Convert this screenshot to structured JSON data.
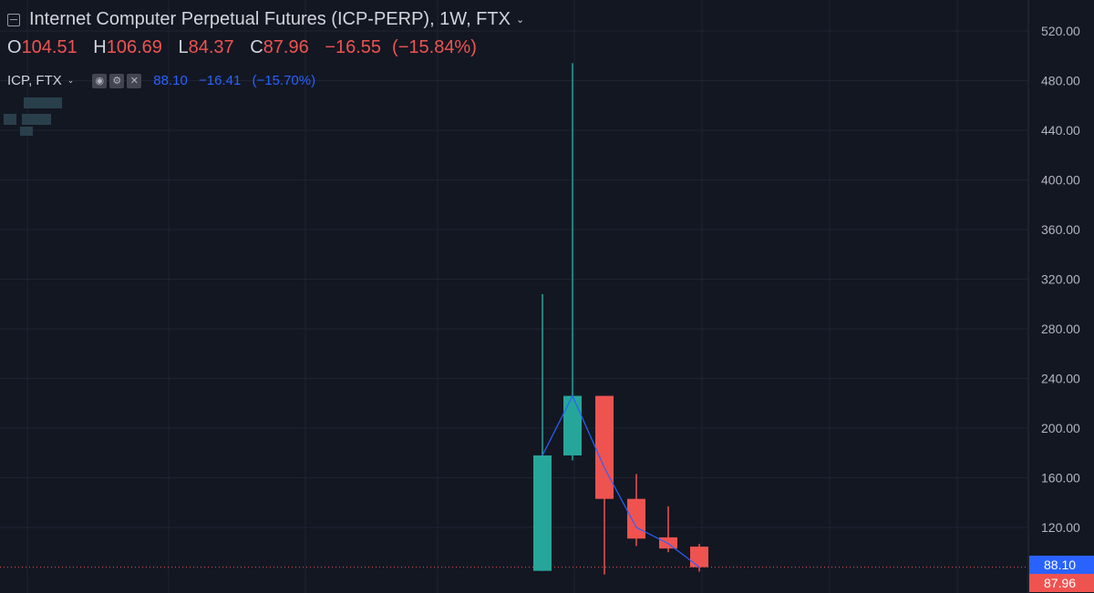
{
  "header": {
    "title": "Internet Computer Perpetual Futures (ICP-PERP), 1W, FTX",
    "ohlc": [
      {
        "label": "O",
        "value": "104.51"
      },
      {
        "label": "H",
        "value": "106.69"
      },
      {
        "label": "L",
        "value": "84.37"
      },
      {
        "label": "C",
        "value": "87.96"
      }
    ],
    "change": "−16.55",
    "change_pct": "(−15.84%)"
  },
  "indicator": {
    "name": "ICP, FTX",
    "value": "88.10",
    "change": "−16.41",
    "change_pct": "(−15.70%)",
    "buttons": [
      "eye-icon",
      "gear-icon",
      "close-icon"
    ]
  },
  "colors": {
    "background": "#131722",
    "up": "#26a69a",
    "down": "#ef5350",
    "compare_line": "#2962ff",
    "grid": "#1f2331",
    "text": "#d1d4dc",
    "axis_text": "#b2b5be"
  },
  "chart_data": {
    "type": "candlestick",
    "yaxis": {
      "ticks": [
        120,
        160,
        200,
        240,
        280,
        320,
        360,
        400,
        440,
        480,
        520
      ],
      "tick_labels": [
        "120.00",
        "160.00",
        "200.00",
        "240.00",
        "280.00",
        "320.00",
        "360.00",
        "400.00",
        "440.00",
        "480.00",
        "520.00"
      ],
      "position": "right"
    },
    "candles": [
      {
        "open": 85,
        "high": 308,
        "low": 85,
        "close": 178
      },
      {
        "open": 178,
        "high": 494,
        "low": 174,
        "close": 226
      },
      {
        "open": 226,
        "high": 226,
        "low": 82,
        "close": 143
      },
      {
        "open": 143,
        "high": 163,
        "low": 105,
        "close": 111
      },
      {
        "open": 112,
        "high": 137,
        "low": 100,
        "close": 103
      },
      {
        "open": 104.51,
        "high": 106.69,
        "low": 84.37,
        "close": 87.96
      }
    ],
    "compare_series": {
      "name": "ICP, FTX",
      "values": [
        178,
        226,
        168,
        120,
        107,
        88.1
      ]
    },
    "price_labels": [
      {
        "value": 88.1,
        "text": "88.10",
        "color": "#2962ff"
      },
      {
        "value": 87.96,
        "text": "87.96",
        "color": "#ef5350"
      }
    ],
    "grid": true
  }
}
